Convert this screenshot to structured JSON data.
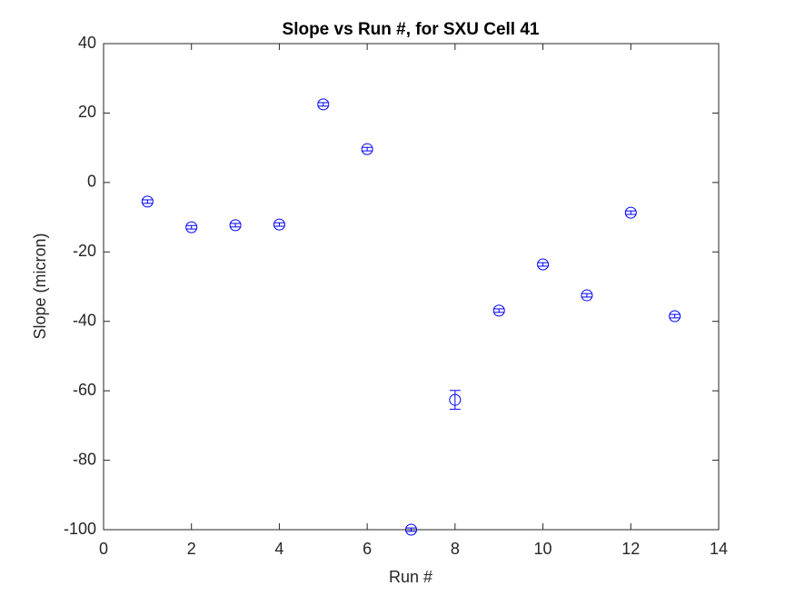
{
  "chart_data": {
    "type": "errorbar",
    "title": "Slope vs Run #, for SXU Cell 41",
    "x_label": "Run #",
    "y_label": "Slope (micron)",
    "x": [
      1,
      2,
      3,
      4,
      5,
      6,
      7,
      8,
      9,
      10,
      11,
      12,
      13
    ],
    "values": [
      -5.5,
      -12.9,
      -12.3,
      -12.1,
      22.5,
      9.6,
      -100,
      -62.6,
      -36.9,
      -23.6,
      -32.5,
      -8.7,
      -38.5
    ],
    "errors": [
      0.5,
      0.5,
      0.5,
      0.5,
      0.5,
      0.5,
      0.5,
      2.7,
      0.5,
      0.5,
      0.5,
      0.5,
      0.5
    ],
    "color": "#0000ff",
    "marker": "circle",
    "xlim": [
      0,
      14
    ],
    "xticks": [
      0,
      2,
      4,
      6,
      8,
      10,
      12,
      14
    ],
    "ylim": [
      -100,
      40
    ],
    "yticks": [
      -100,
      -80,
      -60,
      -40,
      -20,
      0,
      20,
      40
    ],
    "grid": false
  }
}
